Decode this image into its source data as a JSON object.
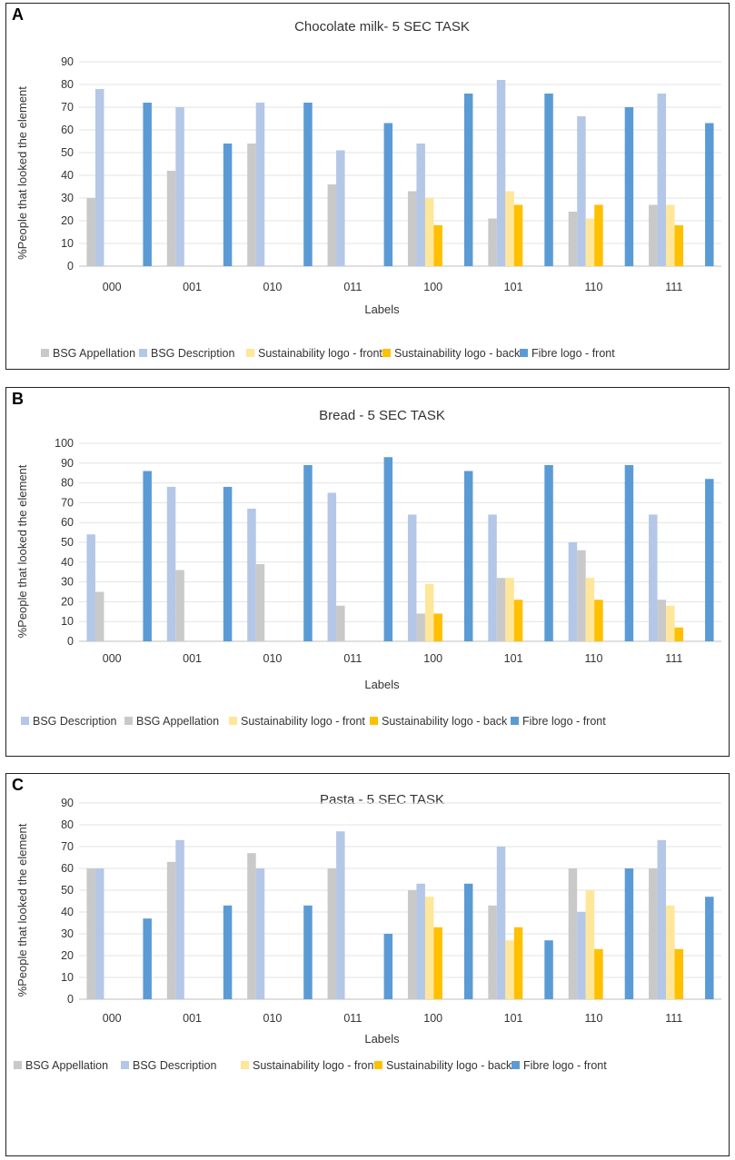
{
  "colors": {
    "bsg_appellation": "#c9c9c9",
    "bsg_description": "#b4c7e7",
    "sust_front": "#ffe699",
    "sust_back": "#ffc000",
    "fibre_front": "#5b9bd5"
  },
  "chart_data": [
    {
      "panel_letter": "A",
      "type": "bar",
      "title": "Chocolate milk- 5 SEC TASK",
      "xlabel": "Labels",
      "ylabel": "%People that looked the element",
      "ylim": [
        0,
        90
      ],
      "yticks": [
        "0",
        "10",
        "20",
        "30",
        "40",
        "50",
        "60",
        "70",
        "80",
        "90"
      ],
      "categories": [
        "000",
        "001",
        "010",
        "011",
        "100",
        "101",
        "110",
        "111"
      ],
      "series": [
        {
          "name": "BSG Appellation",
          "color_key": "bsg_appellation",
          "values": [
            30,
            42,
            54,
            36,
            33,
            21,
            24,
            27
          ]
        },
        {
          "name": "BSG Description",
          "color_key": "bsg_description",
          "values": [
            78,
            70,
            72,
            51,
            54,
            82,
            66,
            76
          ]
        },
        {
          "name": "Sustainability logo - front",
          "color_key": "sust_front",
          "values": [
            0,
            0,
            0,
            0,
            30,
            33,
            21,
            27
          ]
        },
        {
          "name": "Sustainability logo - back",
          "color_key": "sust_back",
          "values": [
            0,
            0,
            0,
            0,
            18,
            27,
            27,
            18
          ]
        },
        {
          "name": "Fibre logo - front",
          "color_key": "fibre_front",
          "values": [
            72,
            54,
            72,
            63,
            76,
            76,
            70,
            63
          ]
        }
      ]
    },
    {
      "panel_letter": "B",
      "type": "bar",
      "title": "Bread - 5 SEC TASK",
      "xlabel": "Labels",
      "ylabel": "%People that looked the element",
      "ylim": [
        0,
        100
      ],
      "yticks": [
        "0",
        "10",
        "20",
        "30",
        "40",
        "50",
        "60",
        "70",
        "80",
        "90",
        "100"
      ],
      "categories": [
        "000",
        "001",
        "010",
        "011",
        "100",
        "101",
        "110",
        "111"
      ],
      "series": [
        {
          "name": "BSG Description",
          "color_key": "bsg_description",
          "values": [
            54,
            78,
            67,
            75,
            64,
            64,
            50,
            64
          ]
        },
        {
          "name": "BSG Appellation",
          "color_key": "bsg_appellation",
          "values": [
            25,
            36,
            39,
            18,
            14,
            32,
            46,
            21
          ]
        },
        {
          "name": "Sustainability logo - front",
          "color_key": "sust_front",
          "values": [
            0,
            0,
            0,
            0,
            29,
            32,
            32,
            18
          ]
        },
        {
          "name": "Sustainability logo - back",
          "color_key": "sust_back",
          "values": [
            0,
            0,
            0,
            0,
            14,
            21,
            21,
            7
          ]
        },
        {
          "name": "Fibre logo - front",
          "color_key": "fibre_front",
          "values": [
            86,
            78,
            89,
            93,
            86,
            89,
            89,
            82
          ]
        }
      ]
    },
    {
      "panel_letter": "C",
      "type": "bar",
      "title": "Pasta - 5 SEC TASK",
      "xlabel": "Labels",
      "ylabel": "%People that looked the element",
      "ylim": [
        0,
        90
      ],
      "yticks": [
        "0",
        "10",
        "20",
        "30",
        "40",
        "50",
        "60",
        "70",
        "80",
        "90"
      ],
      "categories": [
        "000",
        "001",
        "010",
        "011",
        "100",
        "101",
        "110",
        "111"
      ],
      "series": [
        {
          "name": "BSG Appellation",
          "color_key": "bsg_appellation",
          "values": [
            60,
            63,
            67,
            60,
            50,
            43,
            60,
            60
          ]
        },
        {
          "name": "BSG Description",
          "color_key": "bsg_description",
          "values": [
            60,
            73,
            60,
            77,
            53,
            70,
            40,
            73
          ]
        },
        {
          "name": "Sustainability logo - front",
          "color_key": "sust_front",
          "values": [
            0,
            0,
            0,
            0,
            47,
            27,
            50,
            43
          ]
        },
        {
          "name": "Sustainability logo - back",
          "color_key": "sust_back",
          "values": [
            0,
            0,
            0,
            0,
            33,
            33,
            23,
            23
          ]
        },
        {
          "name": "Fibre logo - front",
          "color_key": "fibre_front",
          "values": [
            37,
            43,
            43,
            30,
            53,
            27,
            60,
            47
          ]
        }
      ]
    }
  ]
}
